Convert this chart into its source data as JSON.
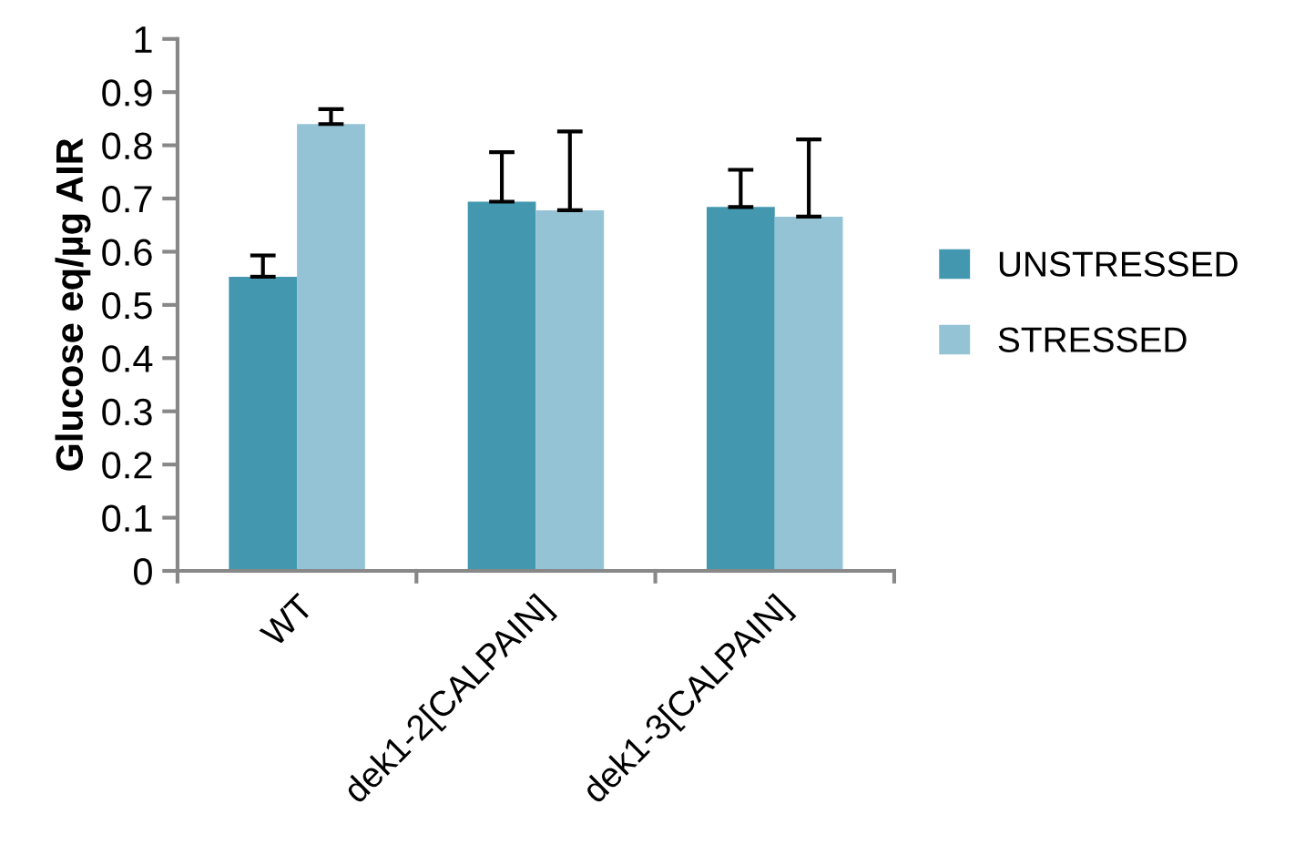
{
  "chart_data": {
    "type": "bar",
    "ylabel": "Glucose eq/µg AIR",
    "categories": [
      "WT",
      "dek1-2[CALPAIN]",
      "dek1-3[CALPAIN]"
    ],
    "series": [
      {
        "name": "UNSTRESSED",
        "color": "#4398b0",
        "values": [
          0.553,
          0.694,
          0.684
        ],
        "errors": [
          [
            0.553,
            0.593
          ],
          [
            0.694,
            0.787
          ],
          [
            0.684,
            0.754
          ]
        ]
      },
      {
        "name": "STRESSED",
        "color": "#94c3d5",
        "values": [
          0.84,
          0.678,
          0.666
        ],
        "errors": [
          [
            0.84,
            0.868
          ],
          [
            0.678,
            0.826
          ],
          [
            0.666,
            0.811
          ]
        ]
      }
    ],
    "ylim": [
      0,
      1
    ],
    "yticks": [
      0,
      0.1,
      0.2,
      0.3,
      0.4,
      0.5,
      0.6,
      0.7,
      0.8,
      0.9,
      1
    ],
    "grid": false,
    "legend": "right"
  }
}
